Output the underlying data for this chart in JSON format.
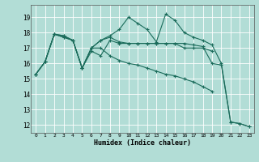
{
  "xlabel": "Humidex (Indice chaleur)",
  "bg_color": "#b2ddd6",
  "grid_color": "#ffffff",
  "line_color": "#1a6b5a",
  "xlim": [
    -0.5,
    23.5
  ],
  "ylim": [
    11.5,
    19.8
  ],
  "yticks": [
    12,
    13,
    14,
    15,
    16,
    17,
    18,
    19
  ],
  "xticks": [
    0,
    1,
    2,
    3,
    4,
    5,
    6,
    7,
    8,
    9,
    10,
    11,
    12,
    13,
    14,
    15,
    16,
    17,
    18,
    19,
    20,
    21,
    22,
    23
  ],
  "series": [
    [
      15.3,
      16.1,
      17.9,
      17.8,
      17.5,
      15.7,
      17.0,
      17.5,
      17.7,
      17.4,
      17.3,
      17.3,
      17.3,
      17.3,
      17.3,
      17.3,
      17.0,
      17.0,
      17.0,
      16.8,
      null,
      null,
      null,
      null
    ],
    [
      15.3,
      16.1,
      17.9,
      17.7,
      17.5,
      15.7,
      17.0,
      17.5,
      17.8,
      18.2,
      19.0,
      18.6,
      18.2,
      17.4,
      19.2,
      18.8,
      18.0,
      17.7,
      17.5,
      17.2,
      16.0,
      12.2,
      12.1,
      11.9
    ],
    [
      15.3,
      16.1,
      17.9,
      17.7,
      17.5,
      15.7,
      16.8,
      16.5,
      17.5,
      17.3,
      17.3,
      17.3,
      17.3,
      17.3,
      17.3,
      17.3,
      17.3,
      17.2,
      17.1,
      16.0,
      15.9,
      12.2,
      12.1,
      11.9
    ],
    [
      15.3,
      16.1,
      17.9,
      17.8,
      17.5,
      15.7,
      17.0,
      17.0,
      16.5,
      16.2,
      16.0,
      15.9,
      15.7,
      15.5,
      15.3,
      15.2,
      15.0,
      14.8,
      14.5,
      14.2,
      null,
      null,
      null,
      null
    ]
  ]
}
